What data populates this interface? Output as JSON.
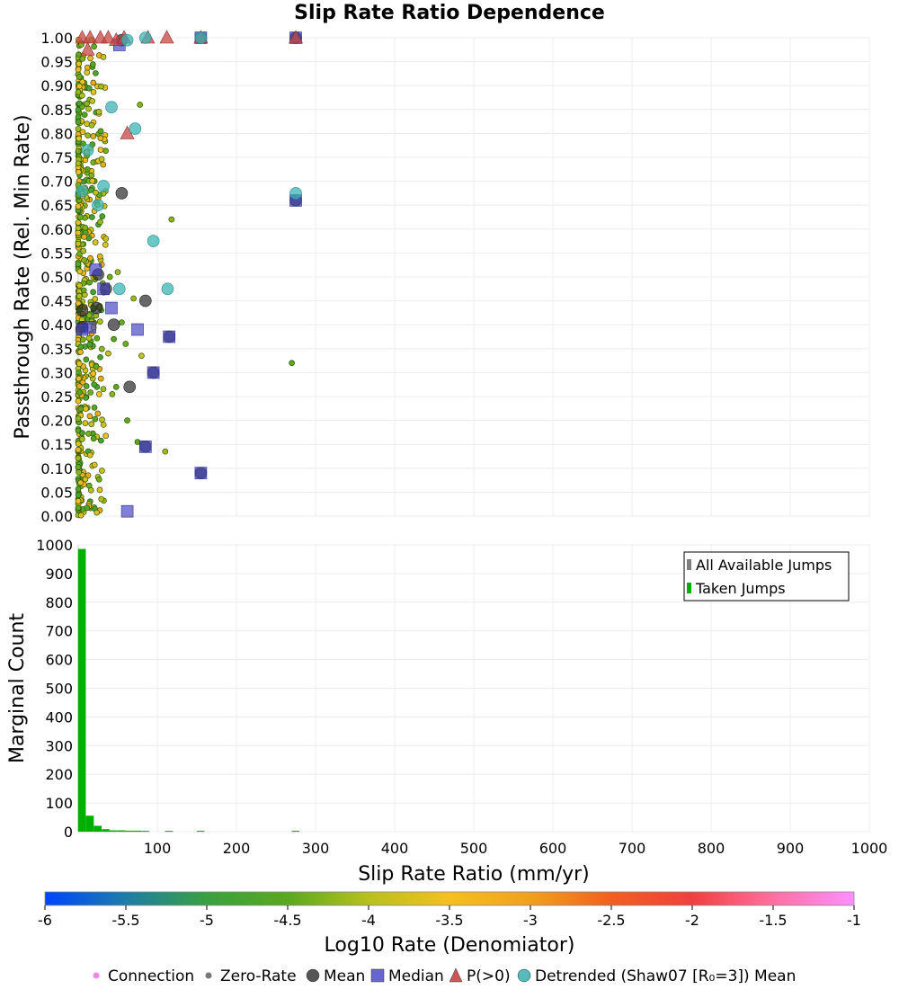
{
  "chart_data": {
    "title": "Slip Rate Ratio Dependence",
    "xlabel": "Slip Rate Ratio (mm/yr)",
    "top_panel": {
      "type": "scatter",
      "ylabel": "Passthrough Rate (Rel. Min Rate)",
      "ylim": [
        0,
        1
      ],
      "xlim": [
        0,
        1000
      ],
      "yticks": [
        "0.00",
        "0.05",
        "0.10",
        "0.15",
        "0.20",
        "0.25",
        "0.30",
        "0.35",
        "0.40",
        "0.45",
        "0.50",
        "0.55",
        "0.60",
        "0.65",
        "0.70",
        "0.75",
        "0.80",
        "0.85",
        "0.90",
        "0.95",
        "1.00"
      ],
      "grid": true,
      "mean": [
        [
          55,
          0.675
        ],
        [
          85,
          0.45
        ],
        [
          65,
          0.27
        ],
        [
          45,
          0.4
        ],
        [
          23,
          0.435
        ],
        [
          25,
          0.505
        ],
        [
          5,
          0.43
        ],
        [
          95,
          0.3
        ],
        [
          85,
          0.145
        ],
        [
          115,
          0.375
        ],
        [
          275,
          0.66
        ],
        [
          155,
          0.09
        ],
        [
          35,
          0.475
        ],
        [
          5,
          0.395
        ],
        [
          55,
          0.995
        ],
        [
          155,
          1.0
        ],
        [
          275,
          1.0
        ]
      ],
      "median": [
        [
          52,
          0.985
        ],
        [
          22,
          0.515
        ],
        [
          32,
          0.475
        ],
        [
          42,
          0.435
        ],
        [
          75,
          0.39
        ],
        [
          15,
          0.395
        ],
        [
          5,
          0.39
        ],
        [
          95,
          0.3
        ],
        [
          85,
          0.145
        ],
        [
          115,
          0.375
        ],
        [
          275,
          0.66
        ],
        [
          155,
          0.09
        ],
        [
          62,
          0.01
        ],
        [
          155,
          1.0
        ],
        [
          275,
          1.0
        ]
      ],
      "p_gt_0": [
        [
          5,
          1.0
        ],
        [
          15,
          1.0
        ],
        [
          28,
          1.0
        ],
        [
          38,
          1.0
        ],
        [
          48,
          0.995
        ],
        [
          58,
          1.0
        ],
        [
          88,
          1.0
        ],
        [
          112,
          1.0
        ],
        [
          155,
          1.0
        ],
        [
          275,
          1.0
        ],
        [
          12,
          0.975
        ],
        [
          62,
          0.8
        ]
      ],
      "detrended_mean": [
        [
          5,
          0.68
        ],
        [
          12,
          0.765
        ],
        [
          25,
          0.65
        ],
        [
          32,
          0.69
        ],
        [
          42,
          0.855
        ],
        [
          52,
          0.475
        ],
        [
          72,
          0.81
        ],
        [
          95,
          0.575
        ],
        [
          113,
          0.475
        ],
        [
          275,
          0.675
        ],
        [
          62,
          0.995
        ],
        [
          85,
          1.0
        ],
        [
          155,
          1.0
        ]
      ],
      "connection_x_range": [
        0,
        35
      ],
      "connection_y_range": [
        0,
        1
      ]
    },
    "bottom_panel": {
      "type": "bar",
      "ylabel": "Marginal Count",
      "ylim": [
        0,
        1000
      ],
      "xlim": [
        0,
        1000
      ],
      "yticks": [
        "0",
        "100",
        "200",
        "300",
        "400",
        "500",
        "600",
        "700",
        "800",
        "900",
        "1000"
      ],
      "xticks": [
        "100",
        "200",
        "300",
        "400",
        "500",
        "600",
        "700",
        "800",
        "900",
        "1000"
      ],
      "bin_width": 10,
      "taken_jumps": [
        [
          5,
          985
        ],
        [
          15,
          55
        ],
        [
          25,
          20
        ],
        [
          35,
          8
        ],
        [
          45,
          4
        ],
        [
          55,
          4
        ],
        [
          65,
          3
        ],
        [
          75,
          3
        ],
        [
          85,
          2
        ],
        [
          115,
          2
        ],
        [
          155,
          2
        ],
        [
          275,
          2
        ]
      ],
      "legend_position": "top-right",
      "legend": [
        {
          "name": "All Available Jumps",
          "color": "#808080"
        },
        {
          "name": "Taken Jumps",
          "color": "#00b000"
        }
      ]
    },
    "colorbar": {
      "label": "Log10 Rate (Denomiator)",
      "range": [
        -6,
        -1
      ],
      "ticks": [
        "-6",
        "-5.5",
        "-5",
        "-4.5",
        "-4",
        "-3.5",
        "-3",
        "-2.5",
        "-2",
        "-1.5",
        "-1"
      ],
      "colors": [
        "#0044ff",
        "#1e7ea8",
        "#3aa040",
        "#5aa820",
        "#b8c020",
        "#f5c020",
        "#f0a020",
        "#f06020",
        "#f04040",
        "#ff70a0",
        "#ff90ff"
      ]
    },
    "bottom_legend": [
      {
        "name": "Connection",
        "symbol": "small-dot",
        "color": "#ee88ee"
      },
      {
        "name": "Zero-Rate",
        "symbol": "small-dot",
        "color": "#777777"
      },
      {
        "name": "Mean",
        "symbol": "circle",
        "color": "#555555"
      },
      {
        "name": "Median",
        "symbol": "square",
        "color": "#6666cc"
      },
      {
        "name": "P(>0)",
        "symbol": "triangle",
        "color": "#cc5555"
      },
      {
        "name": "Detrended (Shaw07 [R₀=3]) Mean",
        "symbol": "circle",
        "color": "#55bbbb"
      }
    ]
  }
}
